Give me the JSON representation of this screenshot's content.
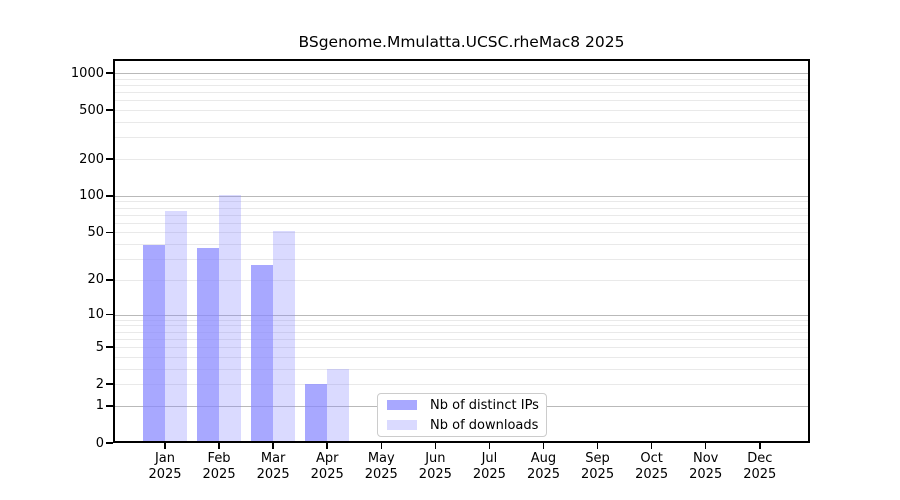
{
  "chart_data": {
    "type": "bar",
    "title": "BSgenome.Mmulatta.UCSC.rheMac8 2025",
    "categories": [
      "Jan",
      "Feb",
      "Mar",
      "Apr",
      "May",
      "Jun",
      "Jul",
      "Aug",
      "Sep",
      "Oct",
      "Nov",
      "Dec"
    ],
    "year": "2025",
    "series": [
      {
        "name": "Nb of distinct IPs",
        "color": "rgba(134,134,255,0.72)",
        "values": [
          39,
          37,
          27,
          2,
          0,
          0,
          0,
          0,
          0,
          0,
          0,
          0
        ]
      },
      {
        "name": "Nb of downloads",
        "color": "rgba(134,134,255,0.30)",
        "values": [
          75,
          102,
          51,
          3,
          0,
          0,
          0,
          0,
          0,
          0,
          0,
          0
        ]
      }
    ],
    "xlabel": "",
    "ylabel": "",
    "y_axis": {
      "scale": "log1p",
      "tick_values": [
        0,
        1,
        2,
        5,
        10,
        20,
        50,
        100,
        200,
        500,
        1000
      ],
      "range_max": 1300
    },
    "grid": {
      "major": [
        1,
        10,
        100,
        1000
      ],
      "minor": [
        2,
        3,
        4,
        5,
        6,
        7,
        8,
        9,
        20,
        30,
        40,
        50,
        60,
        70,
        80,
        90,
        200,
        300,
        400,
        500,
        600,
        700,
        800,
        900
      ],
      "major_color": "#b9b9b9",
      "minor_color": "#e9e9e9"
    },
    "legend": {
      "position": "inside-bottom-center"
    },
    "axis_color": "#000000",
    "background_color": "#ffffff"
  }
}
